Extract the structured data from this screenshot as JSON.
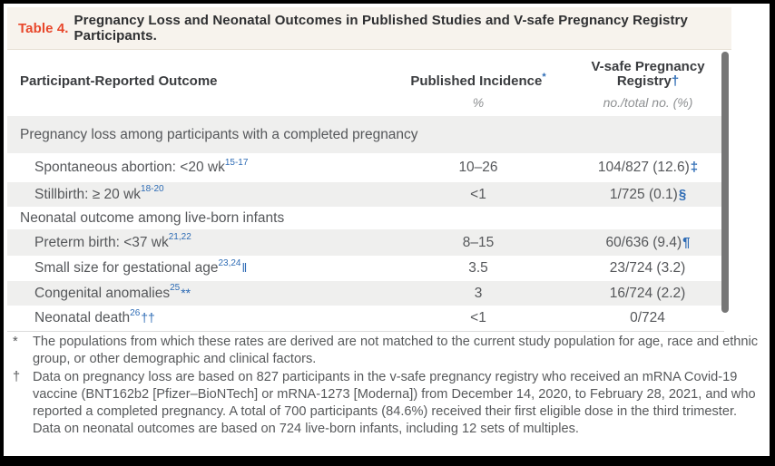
{
  "title": {
    "prefix": "Table 4.",
    "text": "Pregnancy Loss and Neonatal Outcomes in Published Studies and V-safe Pregnancy Registry Participants."
  },
  "colors": {
    "accent_red": "#e8472b",
    "citation_blue": "#2e6cb5",
    "caption_bg": "#f7f3ed",
    "row_stripe": "#efefee"
  },
  "table": {
    "columns": [
      {
        "header": "Participant-Reported Outcome",
        "marker": "",
        "subheader": ""
      },
      {
        "header": "Published Incidence",
        "marker": "*",
        "subheader": "%"
      },
      {
        "header": "V-safe Pregnancy Registry",
        "marker": "†",
        "subheader": "no./total no. (%)"
      }
    ],
    "rows": [
      {
        "type": "section",
        "label": "Pregnancy loss among participants with a completed pregnancy",
        "refs": "",
        "label_symbol": "",
        "published": "",
        "vsafe": "",
        "vsafe_symbol": ""
      },
      {
        "type": "data",
        "label": "Spontaneous abortion: <20 wk",
        "refs": "15-17",
        "label_symbol": "",
        "published": "10–26",
        "vsafe": "104/827 (12.6)",
        "vsafe_symbol": "‡"
      },
      {
        "type": "data",
        "label": "Stillbirth: ≥ 20 wk",
        "refs": "18-20",
        "label_symbol": "",
        "published": "<1",
        "vsafe": "1/725 (0.1)",
        "vsafe_symbol": "§"
      },
      {
        "type": "section",
        "label": "Neonatal outcome among live-born infants",
        "refs": "",
        "label_symbol": "",
        "published": "",
        "vsafe": "",
        "vsafe_symbol": ""
      },
      {
        "type": "data",
        "label": "Preterm birth: <37 wk",
        "refs": "21,22",
        "label_symbol": "",
        "published": "8–15",
        "vsafe": "60/636 (9.4)",
        "vsafe_symbol": "¶"
      },
      {
        "type": "data",
        "label": "Small size for gestational age",
        "refs": "23,24",
        "label_symbol": "‖",
        "published": "3.5",
        "vsafe": "23/724 (3.2)",
        "vsafe_symbol": ""
      },
      {
        "type": "data",
        "label": "Congenital anomalies",
        "refs": "25",
        "label_symbol": "**",
        "published": "3",
        "vsafe": "16/724 (2.2)",
        "vsafe_symbol": ""
      },
      {
        "type": "data",
        "label": "Neonatal death",
        "refs": "26",
        "label_symbol": "††",
        "published": "<1",
        "vsafe": "0/724",
        "vsafe_symbol": ""
      }
    ]
  },
  "footnotes": [
    {
      "marker": "*",
      "text": "The populations from which these rates are derived are not matched to the current study population for age, race and ethnic group, or other demographic and clinical factors."
    },
    {
      "marker": "†",
      "text": "Data on pregnancy loss are based on 827 participants in the v-safe pregnancy registry who received an mRNA Covid-19 vaccine (BNT162b2 [Pfizer–BioNTech] or mRNA-1273 [Moderna]) from December 14, 2020, to February 28, 2021, and who reported a completed pregnancy. A total of 700 participants (84.6%) received their first eligible dose in the third trimester. Data on neonatal outcomes are based on 724 live-born infants, including 12 sets of multiples."
    }
  ]
}
